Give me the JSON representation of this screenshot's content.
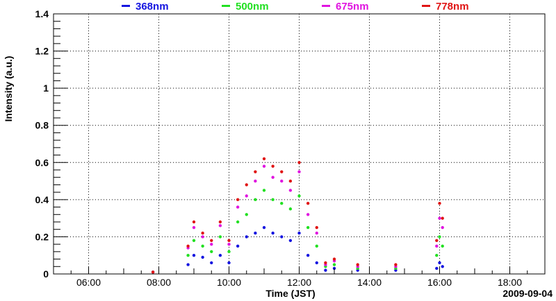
{
  "chart_data": {
    "type": "scatter",
    "xlabel": "Time (JST)",
    "ylabel": "Intensity (a.u.)",
    "date_label": "2009-09-04",
    "xlim": [
      "05:00",
      "19:00"
    ],
    "ylim": [
      0,
      1.4
    ],
    "grid": true,
    "legend_position": "top",
    "x_ticks": [
      "06:00",
      "08:00",
      "10:00",
      "12:00",
      "14:00",
      "16:00",
      "18:00"
    ],
    "y_ticks": [
      "0",
      "0.2",
      "0.4",
      "0.6",
      "0.8",
      "1",
      "1.2",
      "1.4"
    ],
    "series": [
      {
        "name": "368nm",
        "color": "#1515e0",
        "x": [
          "07:50",
          "08:50",
          "09:00",
          "09:15",
          "09:30",
          "09:45",
          "10:00",
          "10:15",
          "10:30",
          "10:45",
          "11:00",
          "11:15",
          "11:30",
          "11:45",
          "12:00",
          "12:15",
          "12:30",
          "12:45",
          "13:00",
          "13:40",
          "14:45",
          "15:55",
          "16:00",
          "16:05"
        ],
        "y": [
          0.01,
          0.05,
          0.1,
          0.09,
          0.06,
          0.1,
          0.06,
          0.15,
          0.2,
          0.22,
          0.25,
          0.22,
          0.2,
          0.18,
          0.22,
          0.1,
          0.06,
          0.02,
          0.03,
          0.02,
          0.02,
          0.03,
          0.06,
          0.04
        ]
      },
      {
        "name": "500nm",
        "color": "#22e022",
        "x": [
          "07:50",
          "08:50",
          "09:00",
          "09:15",
          "09:30",
          "09:45",
          "10:00",
          "10:15",
          "10:30",
          "10:45",
          "11:00",
          "11:15",
          "11:30",
          "11:45",
          "12:00",
          "12:15",
          "12:30",
          "12:45",
          "13:00",
          "13:40",
          "14:45",
          "15:55",
          "16:00",
          "16:05"
        ],
        "y": [
          0.01,
          0.1,
          0.18,
          0.15,
          0.12,
          0.2,
          0.12,
          0.28,
          0.32,
          0.4,
          0.45,
          0.4,
          0.38,
          0.35,
          0.42,
          0.25,
          0.15,
          0.04,
          0.05,
          0.03,
          0.03,
          0.1,
          0.2,
          0.15
        ]
      },
      {
        "name": "675nm",
        "color": "#e015e0",
        "x": [
          "07:50",
          "08:50",
          "09:00",
          "09:15",
          "09:30",
          "09:45",
          "10:00",
          "10:15",
          "10:30",
          "10:45",
          "11:00",
          "11:15",
          "11:30",
          "11:45",
          "12:00",
          "12:15",
          "12:30",
          "12:45",
          "13:00",
          "13:40",
          "14:45",
          "15:55",
          "16:00",
          "16:05"
        ],
        "y": [
          0.01,
          0.14,
          0.25,
          0.2,
          0.16,
          0.26,
          0.16,
          0.36,
          0.42,
          0.5,
          0.58,
          0.52,
          0.5,
          0.45,
          0.55,
          0.32,
          0.22,
          0.05,
          0.07,
          0.04,
          0.04,
          0.15,
          0.3,
          0.25
        ]
      },
      {
        "name": "778nm",
        "color": "#e01515",
        "x": [
          "07:50",
          "08:50",
          "09:00",
          "09:15",
          "09:30",
          "09:45",
          "10:00",
          "10:15",
          "10:30",
          "10:45",
          "11:00",
          "11:15",
          "11:30",
          "11:45",
          "12:00",
          "12:15",
          "12:30",
          "12:45",
          "13:00",
          "13:40",
          "14:45",
          "15:55",
          "16:00",
          "16:05"
        ],
        "y": [
          0.01,
          0.15,
          0.28,
          0.22,
          0.18,
          0.28,
          0.18,
          0.4,
          0.48,
          0.55,
          0.62,
          0.58,
          0.55,
          0.5,
          0.6,
          0.38,
          0.25,
          0.06,
          0.08,
          0.05,
          0.05,
          0.18,
          0.38,
          0.3
        ]
      }
    ]
  }
}
